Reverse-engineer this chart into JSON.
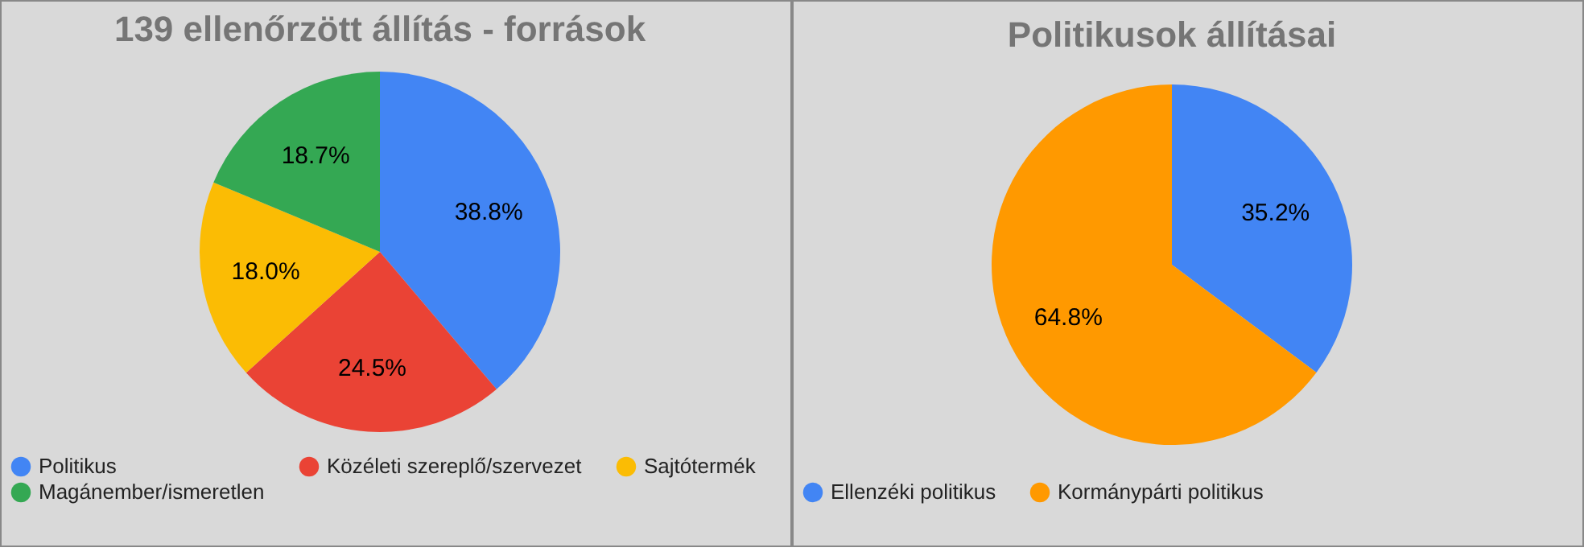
{
  "chart_data": [
    {
      "type": "pie",
      "title": "139 ellenőrzött állítás - források",
      "categories": [
        "Politikus",
        "Közéleti szereplő/szervezet",
        "Sajtótermék",
        "Magánember/ismeretlen"
      ],
      "values": [
        38.8,
        24.5,
        18.0,
        18.7
      ],
      "value_labels": [
        "38.8%",
        "24.5%",
        "18.0%",
        "18.7%"
      ],
      "colors": [
        "#4285f4",
        "#ea4335",
        "#fbbc04",
        "#34a853"
      ],
      "legend": "bottom"
    },
    {
      "type": "pie",
      "title": "Politikusok állításai",
      "categories": [
        "Ellenzéki politikus",
        "Kormánypárti politikus"
      ],
      "values": [
        35.2,
        64.8
      ],
      "value_labels": [
        "35.2%",
        "64.8%"
      ],
      "colors": [
        "#4285f4",
        "#ff9900"
      ],
      "legend": "bottom"
    }
  ]
}
